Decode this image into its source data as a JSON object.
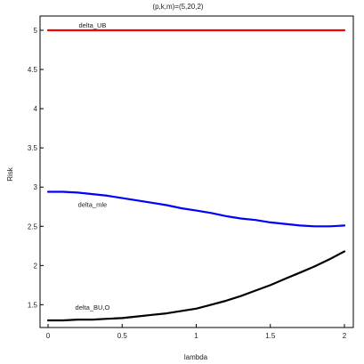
{
  "chart_data": {
    "type": "line",
    "title": "(p,k,m)=(5,20,2)",
    "xlabel": "lambda",
    "ylabel": "Risk",
    "xlim": [
      0,
      2
    ],
    "ylim": [
      1.3,
      5.07
    ],
    "grid": false,
    "x_ticks": [
      0,
      0.5,
      1,
      1.5,
      2
    ],
    "x_tick_labels": [
      "0",
      "0.5",
      "1",
      "1.5",
      "2"
    ],
    "y_ticks": [
      1.5,
      2,
      2.5,
      3,
      3.5,
      4,
      4.5,
      5
    ],
    "y_tick_labels": [
      "1.5",
      "2",
      "2.5",
      "3",
      "3.5",
      "4",
      "4.5",
      "5"
    ],
    "x": [
      0,
      0.1,
      0.2,
      0.3,
      0.4,
      0.5,
      0.6,
      0.7,
      0.8,
      0.9,
      1.0,
      1.1,
      1.2,
      1.3,
      1.4,
      1.5,
      1.6,
      1.7,
      1.8,
      1.9,
      2.0
    ],
    "series": [
      {
        "name": "delta_UB",
        "color": "#ff0000",
        "values": [
          5.0,
          5.0,
          5.0,
          5.0,
          5.0,
          5.0,
          5.0,
          5.0,
          5.0,
          5.0,
          5.0,
          5.0,
          5.0,
          5.0,
          5.0,
          5.0,
          5.0,
          5.0,
          5.0,
          5.0,
          5.0
        ]
      },
      {
        "name": "delta_mle",
        "color": "#0000ff",
        "values": [
          2.94,
          2.94,
          2.93,
          2.91,
          2.89,
          2.86,
          2.83,
          2.8,
          2.77,
          2.73,
          2.7,
          2.67,
          2.63,
          2.6,
          2.58,
          2.55,
          2.53,
          2.51,
          2.5,
          2.5,
          2.51
        ]
      },
      {
        "name": "delta_BU,O",
        "color": "#000000",
        "values": [
          1.3,
          1.3,
          1.31,
          1.31,
          1.32,
          1.33,
          1.35,
          1.37,
          1.39,
          1.42,
          1.45,
          1.5,
          1.55,
          1.61,
          1.68,
          1.75,
          1.83,
          1.91,
          1.99,
          2.08,
          2.18
        ]
      }
    ],
    "annotations": [
      {
        "text": "delta_UB",
        "x": 0.3,
        "y": 5.07
      },
      {
        "text": "delta_mle",
        "x": 0.3,
        "y": 2.78
      },
      {
        "text": "delta_BU,O",
        "x": 0.3,
        "y": 1.47
      }
    ]
  }
}
